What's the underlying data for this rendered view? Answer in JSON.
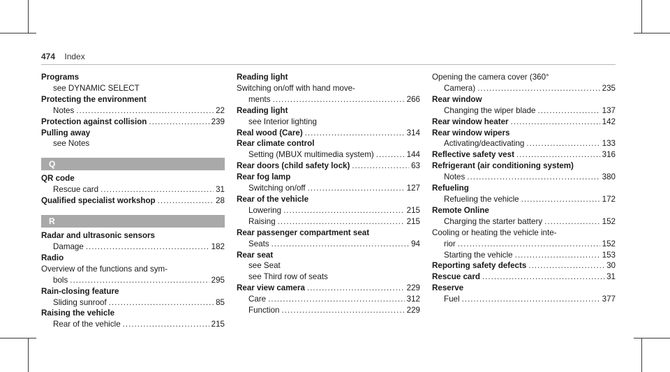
{
  "header": {
    "page_number": "474",
    "title": "Index"
  },
  "columns": [
    [
      {
        "type": "entry",
        "lines": [
          {
            "k": "main",
            "t": "Programs"
          },
          {
            "k": "sub",
            "t": "see DYNAMIC SELECT"
          }
        ]
      },
      {
        "type": "entry",
        "lines": [
          {
            "k": "main",
            "t": "Protecting the environment"
          },
          {
            "k": "sub",
            "t": "Notes",
            "p": "22"
          }
        ]
      },
      {
        "type": "entry",
        "lines": [
          {
            "k": "main",
            "t": "Protection against collision",
            "p": "239"
          }
        ]
      },
      {
        "type": "entry",
        "lines": [
          {
            "k": "main",
            "t": "Pulling away"
          },
          {
            "k": "sub",
            "t": "see Notes"
          }
        ]
      },
      {
        "type": "section",
        "t": "Q"
      },
      {
        "type": "entry",
        "lines": [
          {
            "k": "main",
            "t": "QR code"
          },
          {
            "k": "sub",
            "t": "Rescue card",
            "p": "31"
          }
        ]
      },
      {
        "type": "entry",
        "lines": [
          {
            "k": "main",
            "t": "Qualified specialist workshop",
            "p": "28"
          }
        ]
      },
      {
        "type": "section",
        "t": "R"
      },
      {
        "type": "entry",
        "lines": [
          {
            "k": "main",
            "t": "Radar and ultrasonic sensors"
          },
          {
            "k": "sub",
            "t": "Damage",
            "p": "182"
          }
        ]
      },
      {
        "type": "entry",
        "lines": [
          {
            "k": "main",
            "t": "Radio"
          },
          {
            "k": "cl",
            "t": "Overview of the functions and sym-"
          },
          {
            "k": "cont",
            "t": "bols",
            "p": "295"
          }
        ]
      },
      {
        "type": "entry",
        "lines": [
          {
            "k": "main",
            "t": "Rain-closing feature"
          },
          {
            "k": "sub",
            "t": "Sliding sunroof",
            "p": "85"
          }
        ]
      },
      {
        "type": "entry",
        "lines": [
          {
            "k": "main",
            "t": "Raising the vehicle"
          },
          {
            "k": "sub",
            "t": "Rear of the vehicle",
            "p": "215"
          }
        ]
      }
    ],
    [
      {
        "type": "entry",
        "lines": [
          {
            "k": "main",
            "t": "Reading light"
          },
          {
            "k": "cl",
            "t": "Switching on/off with hand move-"
          },
          {
            "k": "cont",
            "t": "ments",
            "p": "266"
          }
        ]
      },
      {
        "type": "entry",
        "lines": [
          {
            "k": "main",
            "t": "Reading light"
          },
          {
            "k": "sub",
            "t": "see Interior lighting"
          }
        ]
      },
      {
        "type": "entry",
        "lines": [
          {
            "k": "main",
            "t": "Real wood (Care)",
            "p": "314"
          }
        ]
      },
      {
        "type": "entry",
        "lines": [
          {
            "k": "main",
            "t": "Rear climate control"
          },
          {
            "k": "sub",
            "t": "Setting (MBUX multimedia system)",
            "p": "144"
          }
        ]
      },
      {
        "type": "entry",
        "lines": [
          {
            "k": "main",
            "t": "Rear doors (child safety lock)",
            "p": "63"
          }
        ]
      },
      {
        "type": "entry",
        "lines": [
          {
            "k": "main",
            "t": "Rear fog lamp"
          },
          {
            "k": "sub",
            "t": "Switching on/off",
            "p": "127"
          }
        ]
      },
      {
        "type": "entry",
        "lines": [
          {
            "k": "main",
            "t": "Rear of the vehicle"
          },
          {
            "k": "sub",
            "t": "Lowering",
            "p": "215"
          },
          {
            "k": "sub",
            "t": "Raising",
            "p": "215"
          }
        ]
      },
      {
        "type": "entry",
        "lines": [
          {
            "k": "main",
            "t": "Rear passenger compartment seat"
          },
          {
            "k": "sub",
            "t": "Seats",
            "p": "94"
          }
        ]
      },
      {
        "type": "entry",
        "lines": [
          {
            "k": "main",
            "t": "Rear seat"
          },
          {
            "k": "sub",
            "t": "see Seat"
          },
          {
            "k": "sub",
            "t": "see Third row of seats"
          }
        ]
      },
      {
        "type": "entry",
        "lines": [
          {
            "k": "main",
            "t": "Rear view camera",
            "p": "229"
          },
          {
            "k": "sub",
            "t": "Care",
            "p": "312"
          },
          {
            "k": "sub",
            "t": "Function",
            "p": "229"
          }
        ]
      }
    ],
    [
      {
        "type": "entry",
        "lines": [
          {
            "k": "cl",
            "t": "Opening the camera cover (360°"
          },
          {
            "k": "cont",
            "t": "Camera)",
            "p": "235"
          }
        ]
      },
      {
        "type": "entry",
        "lines": [
          {
            "k": "main",
            "t": "Rear window"
          },
          {
            "k": "sub",
            "t": "Changing the wiper blade",
            "p": "137"
          }
        ]
      },
      {
        "type": "entry",
        "lines": [
          {
            "k": "main",
            "t": "Rear window heater",
            "p": "142"
          }
        ]
      },
      {
        "type": "entry",
        "lines": [
          {
            "k": "main",
            "t": "Rear window wipers"
          },
          {
            "k": "sub",
            "t": "Activating/deactivating",
            "p": "133"
          }
        ]
      },
      {
        "type": "entry",
        "lines": [
          {
            "k": "main",
            "t": "Reflective safety vest",
            "p": "316"
          }
        ]
      },
      {
        "type": "entry",
        "lines": [
          {
            "k": "main",
            "t": "Refrigerant (air conditioning system)"
          },
          {
            "k": "sub",
            "t": "Notes",
            "p": "380"
          }
        ]
      },
      {
        "type": "entry",
        "lines": [
          {
            "k": "main",
            "t": "Refueling"
          },
          {
            "k": "sub",
            "t": "Refueling the vehicle",
            "p": "172"
          }
        ]
      },
      {
        "type": "entry",
        "lines": [
          {
            "k": "main",
            "t": "Remote Online"
          },
          {
            "k": "sub",
            "t": "Charging the starter battery",
            "p": "152"
          },
          {
            "k": "cl",
            "t": "Cooling or heating the vehicle inte-"
          },
          {
            "k": "cont",
            "t": "rior",
            "p": "152"
          },
          {
            "k": "sub",
            "t": "Starting the vehicle",
            "p": "153"
          }
        ]
      },
      {
        "type": "entry",
        "lines": [
          {
            "k": "main",
            "t": "Reporting safety defects",
            "p": "30"
          }
        ]
      },
      {
        "type": "entry",
        "lines": [
          {
            "k": "main",
            "t": "Rescue card",
            "p": "31"
          }
        ]
      },
      {
        "type": "entry",
        "lines": [
          {
            "k": "main",
            "t": "Reserve"
          },
          {
            "k": "sub",
            "t": "Fuel",
            "p": "377"
          }
        ]
      }
    ]
  ]
}
